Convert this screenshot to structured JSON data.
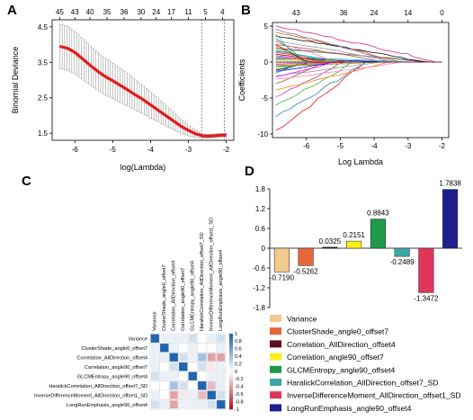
{
  "chart_data": [
    {
      "panel": "A",
      "type": "line",
      "panel_label": "A",
      "xlabel": "log(Lambda)",
      "ylabel": "Binomial Deviance",
      "xlim": [
        -6.6,
        -1.8
      ],
      "ylim": [
        1.3,
        4.7
      ],
      "x_ticks": [
        "-6",
        "-5",
        "-4",
        "-3",
        "-2"
      ],
      "y_ticks": [
        "1.5",
        "2.5",
        "3.5",
        "4.5"
      ],
      "top_ticks": [
        "45",
        "43",
        "40",
        "35",
        "36",
        "30",
        "24",
        "17",
        "11",
        "5",
        "4"
      ],
      "top_ticks_x": [
        -6.4,
        -6.0,
        -5.6,
        -5.15,
        -4.7,
        -4.25,
        -3.85,
        -3.45,
        -3.0,
        -2.55,
        -2.1
      ],
      "vlines": [
        -2.65,
        -2.05
      ],
      "x": [
        -6.4,
        -6.2,
        -6.0,
        -5.8,
        -5.6,
        -5.4,
        -5.2,
        -5.0,
        -4.8,
        -4.6,
        -4.4,
        -4.2,
        -4.0,
        -3.8,
        -3.6,
        -3.4,
        -3.2,
        -3.0,
        -2.8,
        -2.6,
        -2.4,
        -2.2,
        -2.0
      ],
      "mean": [
        3.95,
        3.9,
        3.78,
        3.6,
        3.42,
        3.25,
        3.1,
        2.98,
        2.85,
        2.72,
        2.58,
        2.45,
        2.3,
        2.15,
        2.0,
        1.85,
        1.7,
        1.58,
        1.48,
        1.42,
        1.42,
        1.44,
        1.45
      ],
      "err": [
        0.62,
        0.62,
        0.6,
        0.58,
        0.56,
        0.54,
        0.52,
        0.5,
        0.48,
        0.46,
        0.43,
        0.4,
        0.37,
        0.33,
        0.29,
        0.25,
        0.2,
        0.15,
        0.1,
        0.06,
        0.05,
        0.05,
        0.05
      ],
      "line_color": "#e41a1c"
    },
    {
      "panel": "B",
      "type": "line",
      "panel_label": "B",
      "xlabel": "Log Lambda",
      "ylabel": "Coefficients",
      "xlim": [
        -7.0,
        -1.8
      ],
      "ylim": [
        -10.5,
        5.5
      ],
      "x_ticks": [
        "-6",
        "-5",
        "-4",
        "-3",
        "-2"
      ],
      "y_ticks": [
        "-10",
        "-5",
        "0",
        "5"
      ],
      "top_ticks": [
        "43",
        "36",
        "24",
        "14",
        "0"
      ],
      "top_ticks_x": [
        -6.3,
        -4.9,
        -4.0,
        -3.0,
        -2.0
      ],
      "path_count": 40
    },
    {
      "panel": "C",
      "type": "heatmap",
      "panel_label": "C",
      "variables": [
        "Variance",
        "ClusterShade_angle0_offset7",
        "Correlation_AllDirection_offset4",
        "Correlation_angle90_offset7",
        "GLCMEntropy_angle90_offset4",
        "HaralickCorrelation_AllDirection_offset7_SD",
        "InverseDifferenceMoment_AllDirection_offset1_SD",
        "LongRunEmphasis_angle90_offset4"
      ],
      "colorbar_ticks": [
        "1",
        "0.8",
        "0.6",
        "0.4",
        "0.2",
        "0",
        "-0.2",
        "-0.4",
        "-0.6",
        "-0.8",
        "-1"
      ],
      "matrix": [
        [
          1,
          0.1,
          0.1,
          0.1,
          0.2,
          0.0,
          0.1,
          0.2
        ],
        [
          0.1,
          1,
          0.1,
          0.0,
          0.1,
          0.0,
          0.0,
          0.1
        ],
        [
          0.1,
          0.1,
          1,
          0.2,
          0.1,
          0.4,
          -0.4,
          -0.4
        ],
        [
          0.1,
          0.0,
          0.2,
          1,
          0.0,
          0.2,
          -0.1,
          0.1
        ],
        [
          0.2,
          0.1,
          0.1,
          0.0,
          1,
          0.0,
          0.1,
          0.1
        ],
        [
          0.0,
          0.0,
          0.4,
          0.2,
          0.0,
          1,
          -0.3,
          0.1
        ],
        [
          0.1,
          0.0,
          -0.4,
          -0.1,
          0.1,
          -0.3,
          1,
          0.2
        ],
        [
          0.2,
          0.1,
          -0.4,
          0.1,
          0.1,
          0.1,
          0.2,
          1
        ]
      ]
    },
    {
      "panel": "D",
      "type": "bar",
      "panel_label": "D",
      "ylim": [
        -1.8,
        1.8
      ],
      "y_ticks": [
        "1.8",
        "1.2",
        "0.6",
        "0",
        "-0.6",
        "-1.2",
        "-1.8"
      ],
      "categories": [
        "Variance",
        "ClusterShade_angle0_offset7",
        "Correlation_AllDirection_offset4",
        "Correlation_angle90_offset7",
        "GLCMEntropy_angle90_offset4",
        "HaralickCorrelation_AllDirection_offset7_SD",
        "InverseDifferenceMoment_AllDirection_offset1_SD",
        "LongRunEmphasis_angle90_offset4"
      ],
      "values": [
        -0.719,
        -0.5262,
        0.0325,
        0.2151,
        0.8843,
        -0.2489,
        -1.3472,
        1.7838
      ],
      "value_labels": [
        "-0.7190",
        "-0.5262",
        "0.0325",
        "0.2151",
        "0.8843",
        "-0.2489",
        "-1.3472",
        "1.7838"
      ],
      "colors": [
        "#f4c98e",
        "#e8663a",
        "#5a0f1c",
        "#f6f019",
        "#1f9a4a",
        "#3aa7a6",
        "#e0355a",
        "#1c1f8c"
      ]
    }
  ]
}
